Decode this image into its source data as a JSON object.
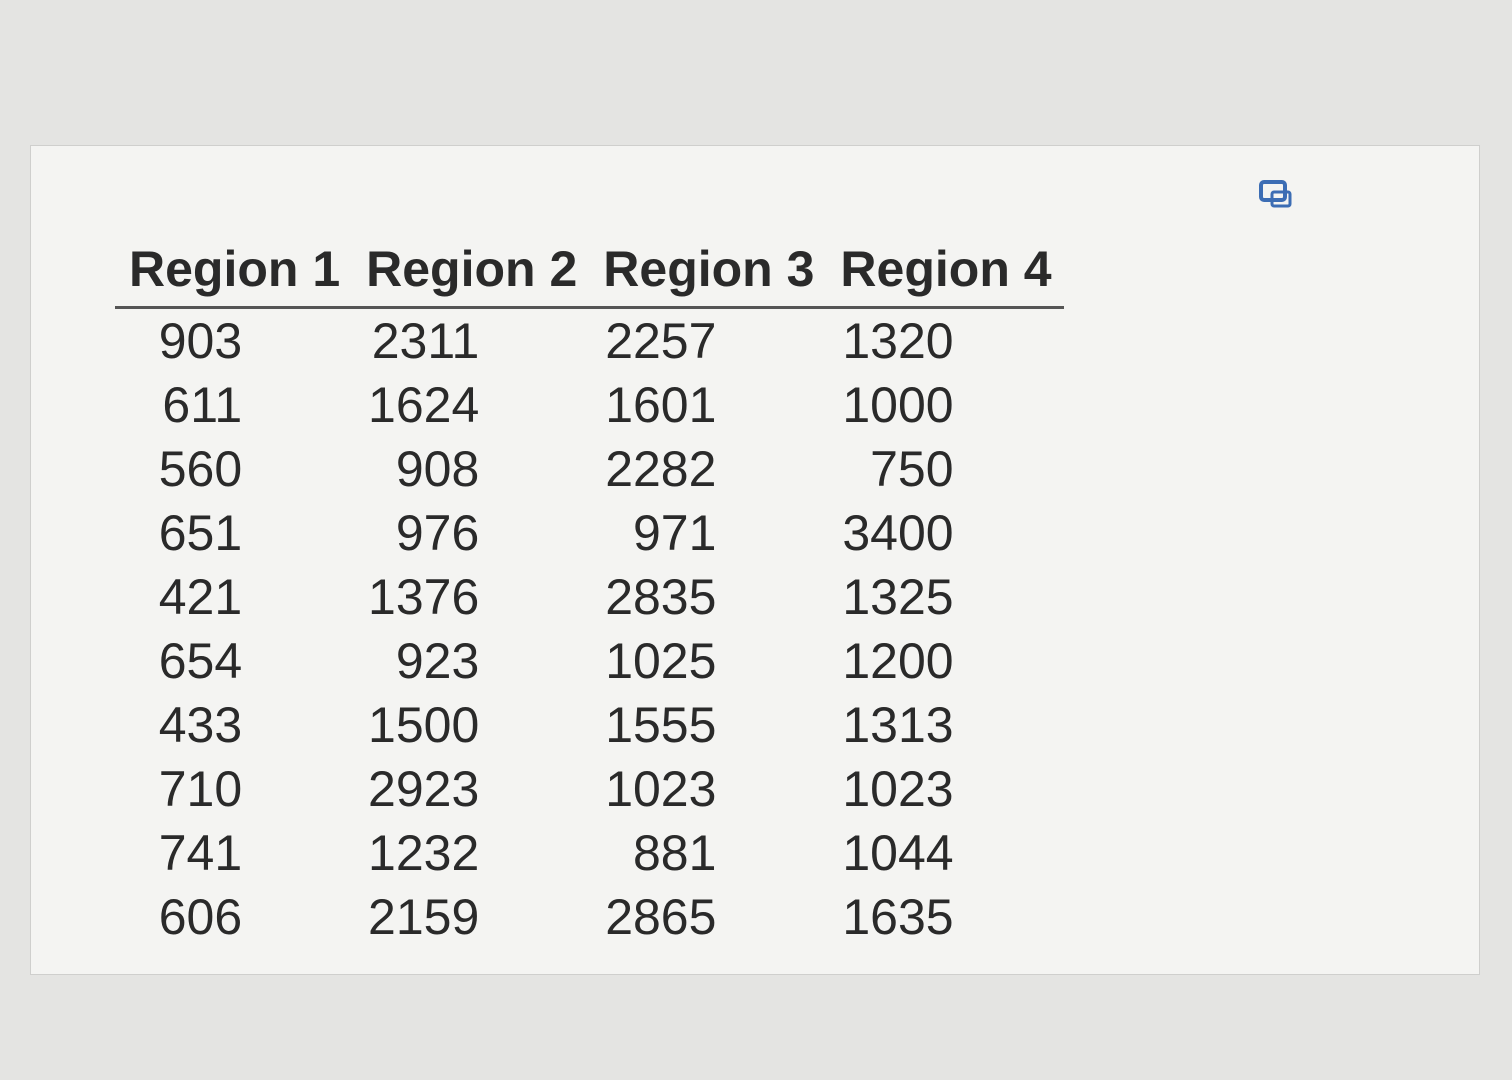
{
  "table": {
    "header": [
      "Region 1",
      "Region 2",
      "Region 3",
      "Region 4"
    ],
    "rows": [
      [
        903,
        2311,
        2257,
        1320
      ],
      [
        611,
        1624,
        1601,
        1000
      ],
      [
        560,
        908,
        2282,
        750
      ],
      [
        651,
        976,
        971,
        3400
      ],
      [
        421,
        1376,
        2835,
        1325
      ],
      [
        654,
        923,
        1025,
        1200
      ],
      [
        433,
        1500,
        1555,
        1313
      ],
      [
        710,
        2923,
        1023,
        1023
      ],
      [
        741,
        1232,
        881,
        1044
      ],
      [
        606,
        2159,
        2865,
        1635
      ]
    ]
  }
}
